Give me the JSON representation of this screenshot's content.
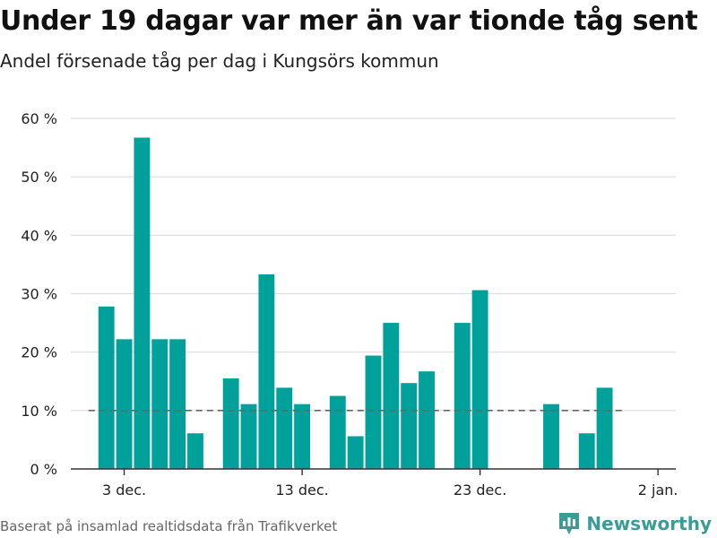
{
  "title": "Under 19 dagar var mer än var tionde tåg sent",
  "subtitle": "Andel försenade tåg per dag i Kungsörs kommun",
  "source": "Baserat på insamlad realtidsdata från Trafikverket",
  "brand": {
    "name": "Newsworthy",
    "icon": "newsworthy-logo-icon",
    "color": "#3a9c96"
  },
  "colors": {
    "bar": "#00a19a",
    "grid": "#dddddd",
    "axis": "#333333",
    "reference": "#666666"
  },
  "chart_data": {
    "type": "bar",
    "x_start": "2023-12-02",
    "dates": [
      "2023-12-02",
      "2023-12-03",
      "2023-12-04",
      "2023-12-05",
      "2023-12-06",
      "2023-12-07",
      "2023-12-08",
      "2023-12-09",
      "2023-12-10",
      "2023-12-11",
      "2023-12-12",
      "2023-12-13",
      "2023-12-14",
      "2023-12-15",
      "2023-12-16",
      "2023-12-17",
      "2023-12-18",
      "2023-12-19",
      "2023-12-20",
      "2023-12-21",
      "2023-12-22",
      "2023-12-23",
      "2023-12-24",
      "2023-12-25",
      "2023-12-26",
      "2023-12-27",
      "2023-12-28",
      "2023-12-29",
      "2023-12-30"
    ],
    "values": [
      27.8,
      22.2,
      56.7,
      22.2,
      22.2,
      6.1,
      null,
      15.5,
      11.1,
      33.3,
      13.9,
      11.1,
      null,
      12.5,
      5.6,
      19.4,
      25.0,
      14.7,
      16.7,
      null,
      25.0,
      30.6,
      null,
      null,
      null,
      11.1,
      null,
      6.1,
      13.9
    ],
    "reference_line": {
      "value": 10,
      "style": "dashed"
    },
    "ylim": [
      0,
      60
    ],
    "yticks": [
      0,
      10,
      20,
      30,
      40,
      50,
      60
    ],
    "ytick_labels": [
      "0 %",
      "10 %",
      "20 %",
      "30 %",
      "40 %",
      "50 %",
      "60 %"
    ],
    "xticks": [
      {
        "date": "2023-12-03",
        "label": "3 dec."
      },
      {
        "date": "2023-12-13",
        "label": "13 dec."
      },
      {
        "date": "2023-12-23",
        "label": "23 dec."
      },
      {
        "date": "2024-01-02",
        "label": "2 jan."
      }
    ],
    "xlim": [
      "2023-11-30",
      "2024-01-03"
    ],
    "grid": true,
    "legend": "none"
  }
}
